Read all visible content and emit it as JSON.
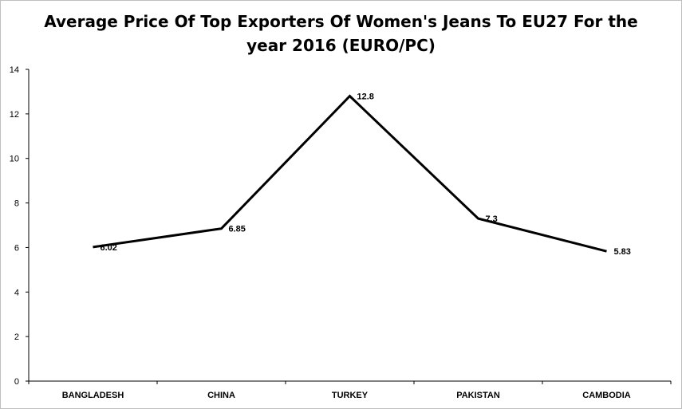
{
  "chart_data": {
    "type": "line",
    "title_line1": "Average Price Of Top Exporters Of Women's Jeans To EU27 For the",
    "title_line2": "year 2016 (EURO/PC)",
    "xlabel": "",
    "ylabel": "",
    "categories": [
      "BANGLADESH",
      "CHINA",
      "TURKEY",
      "PAKISTAN",
      "CAMBODIA"
    ],
    "series": [
      {
        "values": [
          6.02,
          6.85,
          12.8,
          7.3,
          5.83
        ]
      }
    ],
    "data_labels": [
      "6.02",
      "6.85",
      "12.8",
      "7.3",
      "5.83"
    ],
    "ylim": [
      0,
      14
    ],
    "yticks": [
      0,
      2,
      4,
      6,
      8,
      10,
      12,
      14
    ],
    "grid": false,
    "legend": "none",
    "line_color": "#000000"
  }
}
